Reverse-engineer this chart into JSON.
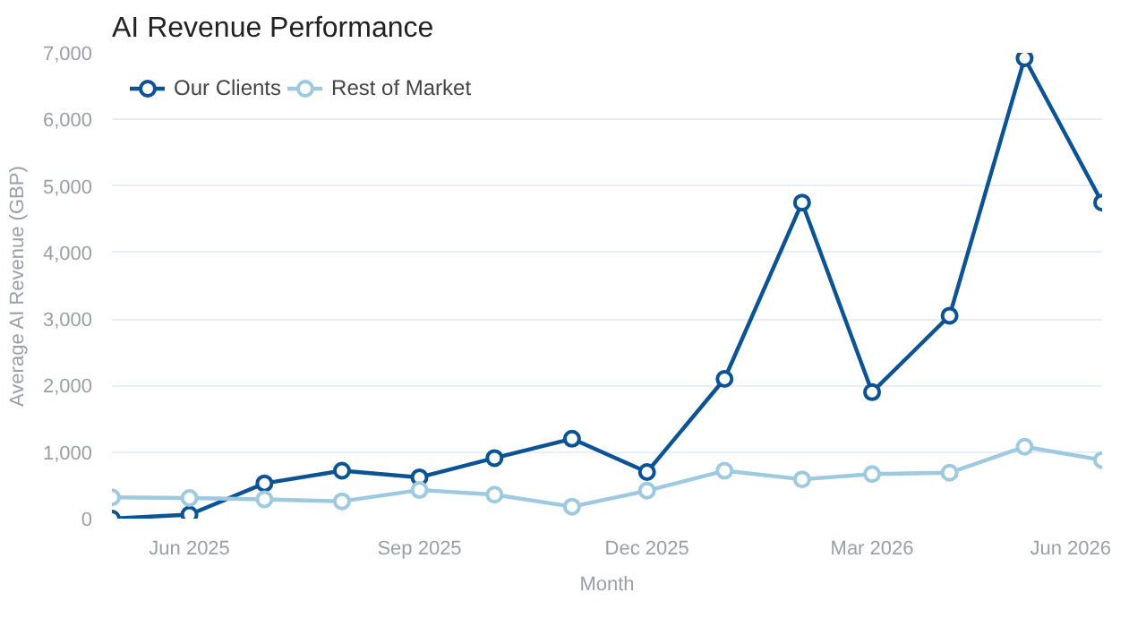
{
  "chart_data": {
    "type": "line",
    "title": "AI Revenue Performance",
    "xlabel": "Month",
    "ylabel": "Average AI Revenue (GBP)",
    "x": [
      "2025-05",
      "2025-06",
      "2025-07",
      "2025-08",
      "2025-09",
      "2025-10",
      "2025-11",
      "2025-12",
      "2026-01",
      "2026-02",
      "2026-03",
      "2026-04",
      "2026-05",
      "2026-06"
    ],
    "series": [
      {
        "name": "Our Clients",
        "color": "#0b5394",
        "values": [
          0,
          60,
          530,
          720,
          620,
          910,
          1200,
          700,
          2100,
          4750,
          1900,
          3050,
          6920,
          4750
        ]
      },
      {
        "name": "Rest of Market",
        "color": "#9ecae1",
        "values": [
          320,
          310,
          290,
          260,
          430,
          360,
          180,
          420,
          720,
          590,
          670,
          690,
          1080,
          880
        ]
      }
    ],
    "xlim": [
      "2025-05",
      "2026-06"
    ],
    "xticks": [
      {
        "value": "2025-06",
        "label": "Jun 2025"
      },
      {
        "value": "2025-09",
        "label": "Sep 2025"
      },
      {
        "value": "2025-12",
        "label": "Dec 2025"
      },
      {
        "value": "2026-03",
        "label": "Mar 2026"
      },
      {
        "value": "2026-06",
        "label": "Jun 2026"
      }
    ],
    "ylim": [
      0,
      7000
    ],
    "yticks": [
      {
        "value": 0,
        "label": "0"
      },
      {
        "value": 1000,
        "label": "1,000"
      },
      {
        "value": 2000,
        "label": "2,000"
      },
      {
        "value": 3000,
        "label": "3,000"
      },
      {
        "value": 4000,
        "label": "4,000"
      },
      {
        "value": 5000,
        "label": "5,000"
      },
      {
        "value": 6000,
        "label": "6,000"
      },
      {
        "value": 7000,
        "label": "7,000"
      }
    ],
    "grid": "y",
    "legend": "top left",
    "marker": "circle",
    "line_style": "solid"
  }
}
